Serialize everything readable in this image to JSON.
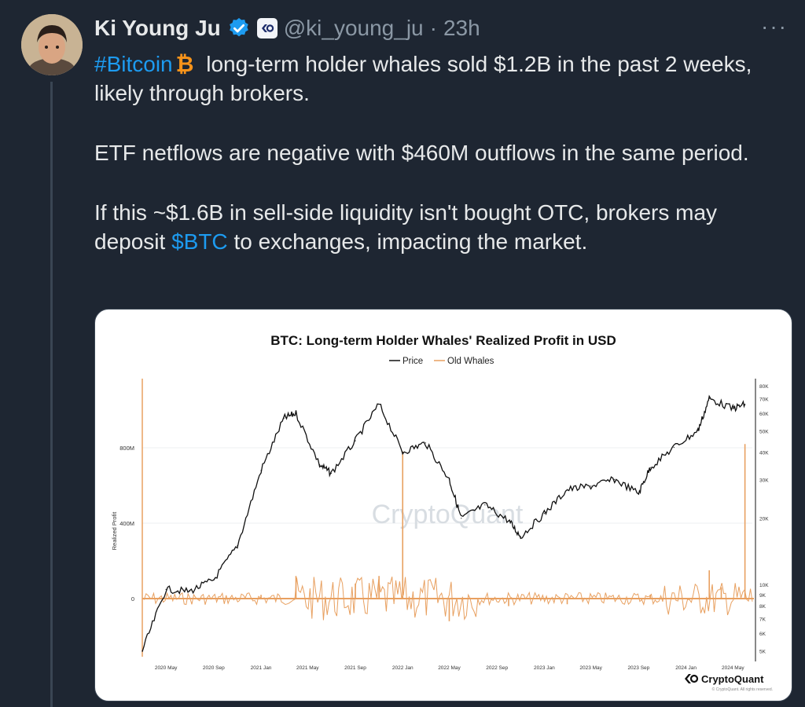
{
  "tweet": {
    "author_name": "Ki Young Ju",
    "handle": "@ki_young_ju",
    "separator": "·",
    "time": "23h",
    "more": "···",
    "hashtag": "#Bitcoin",
    "line1_rest": "long-term holder whales sold $1.2B in the past 2 weeks, likely through brokers.",
    "para2": "ETF netflows are negative with $460M outflows in the same period.",
    "para3_start": "If this ~$1.6B in sell-side liquidity isn't bought OTC, brokers may deposit",
    "cashtag": "$BTC",
    "para3_end": "to exchanges, impacting the market."
  },
  "colors": {
    "background": "#1e2632",
    "link": "#1d9bf0",
    "verified": "#1d9bf0",
    "price_line": "#111111",
    "whale_series": "#e8a060",
    "bitcoin_icon": "#f7931a"
  },
  "icons": [
    "verified-badge-icon",
    "cryptoquant-affiliate-icon",
    "bitcoin-emoji-icon",
    "more-icon"
  ],
  "chart_data": {
    "type": "line",
    "title": "BTC: Long-term Holder Whales' Realized Profit in USD",
    "legend_placement": "top-center",
    "ylabel": "Realized Profit",
    "grid": true,
    "log_right_axis": true,
    "series": [
      {
        "name": "Price",
        "color": "#111111",
        "axis": "right",
        "x": [
          "2020-03",
          "2020-05",
          "2020-07",
          "2020-09",
          "2020-11",
          "2021-01",
          "2021-03",
          "2021-04",
          "2021-06",
          "2021-07",
          "2021-09",
          "2021-11",
          "2022-01",
          "2022-03",
          "2022-05",
          "2022-06",
          "2022-08",
          "2022-10",
          "2022-11",
          "2023-01",
          "2023-03",
          "2023-05",
          "2023-07",
          "2023-09",
          "2023-10",
          "2023-12",
          "2024-02",
          "2024-03",
          "2024-05",
          "2024-06"
        ],
        "values": [
          5000,
          9500,
          9300,
          10500,
          15000,
          33000,
          57000,
          60000,
          35000,
          32000,
          45000,
          66000,
          40000,
          44000,
          30000,
          20000,
          23000,
          19500,
          16500,
          21000,
          27000,
          28000,
          30000,
          26000,
          34000,
          42000,
          50000,
          70000,
          63000,
          66000
        ]
      },
      {
        "name": "Old Whales",
        "color": "#e8a060",
        "axis": "left",
        "x": [
          "2020-03",
          "2020-08",
          "2021-01",
          "2021-04",
          "2021-09",
          "2021-11",
          "2022-01",
          "2022-01",
          "2022-05",
          "2022-10",
          "2023-03",
          "2023-10",
          "2024-03",
          "2024-04",
          "2024-06"
        ],
        "values": [
          0,
          5000000,
          20000000,
          120000000,
          80000000,
          120000000,
          60000000,
          780000000,
          -120000000,
          -40000000,
          -30000000,
          20000000,
          150000000,
          60000000,
          820000000
        ]
      }
    ],
    "left_axis_ticks": [
      "0",
      "400M",
      "800M"
    ],
    "right_axis_ticks": [
      "5K",
      "6K",
      "7K",
      "8K",
      "9K",
      "10K",
      "20K",
      "30K",
      "40K",
      "50K",
      "60K",
      "70K",
      "80K"
    ],
    "x_axis_ticks": [
      "2020 May",
      "2020 Sep",
      "2021 Jan",
      "2021 May",
      "2021 Sep",
      "2022 Jan",
      "2022 May",
      "2022 Sep",
      "2023 Jan",
      "2023 May",
      "2023 Sep",
      "2024 Jan",
      "2024 May"
    ],
    "watermark": "CryptoQuant",
    "brand": "CryptoQuant",
    "copyright": "© CryptoQuant. All rights reserved."
  }
}
